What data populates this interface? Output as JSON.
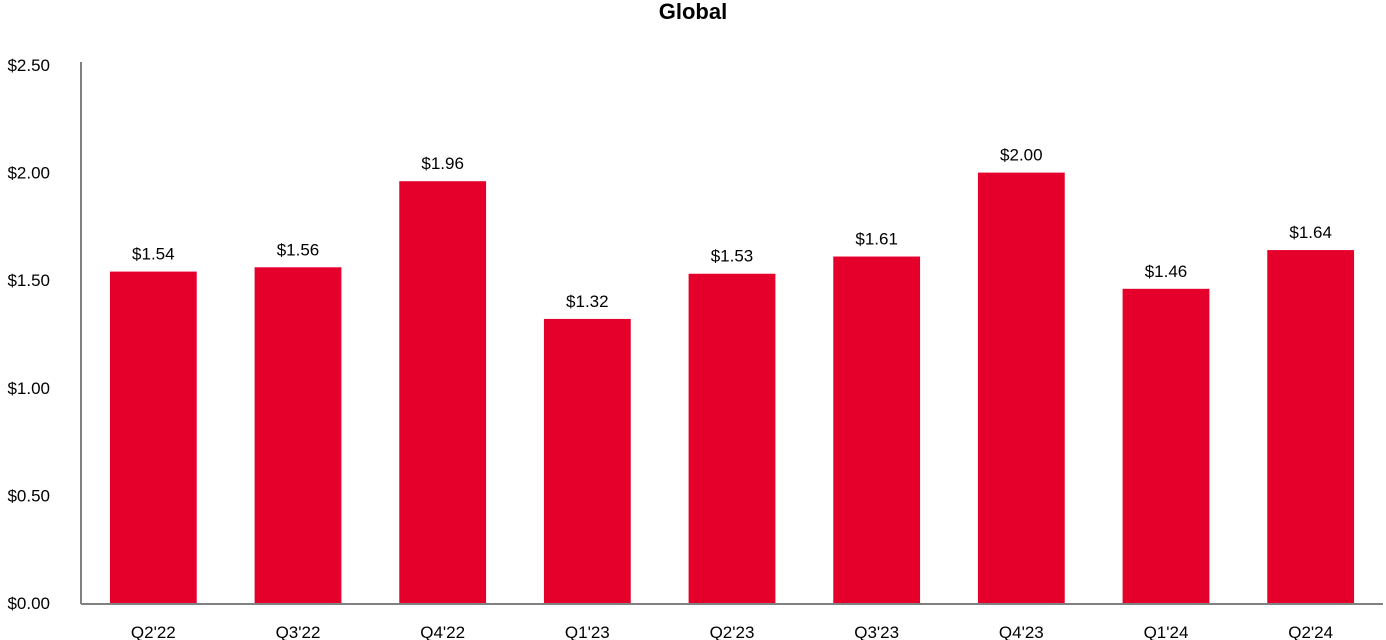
{
  "chart_data": {
    "type": "bar",
    "title": "Global",
    "categories": [
      "Q2'22",
      "Q3'22",
      "Q4'22",
      "Q1'23",
      "Q2'23",
      "Q3'23",
      "Q4'23",
      "Q1'24",
      "Q2'24"
    ],
    "values": [
      1.54,
      1.56,
      1.96,
      1.32,
      1.53,
      1.61,
      2.0,
      1.46,
      1.64
    ],
    "data_labels": [
      "$1.54",
      "$1.56",
      "$1.96",
      "$1.32",
      "$1.53",
      "$1.61",
      "$2.00",
      "$1.46",
      "$1.64"
    ],
    "xlabel": "",
    "ylabel": "",
    "ylim": [
      0,
      2.5
    ],
    "y_ticks": [
      0,
      0.5,
      1.0,
      1.5,
      2.0,
      2.5
    ],
    "y_tick_labels": [
      "$0.00",
      "$0.50",
      "$1.00",
      "$1.50",
      "$2.00",
      "$2.50"
    ],
    "grid": false,
    "legend": "none",
    "colors": {
      "bar": "#E4002B",
      "axis": "#808080",
      "text": "#000000"
    }
  }
}
